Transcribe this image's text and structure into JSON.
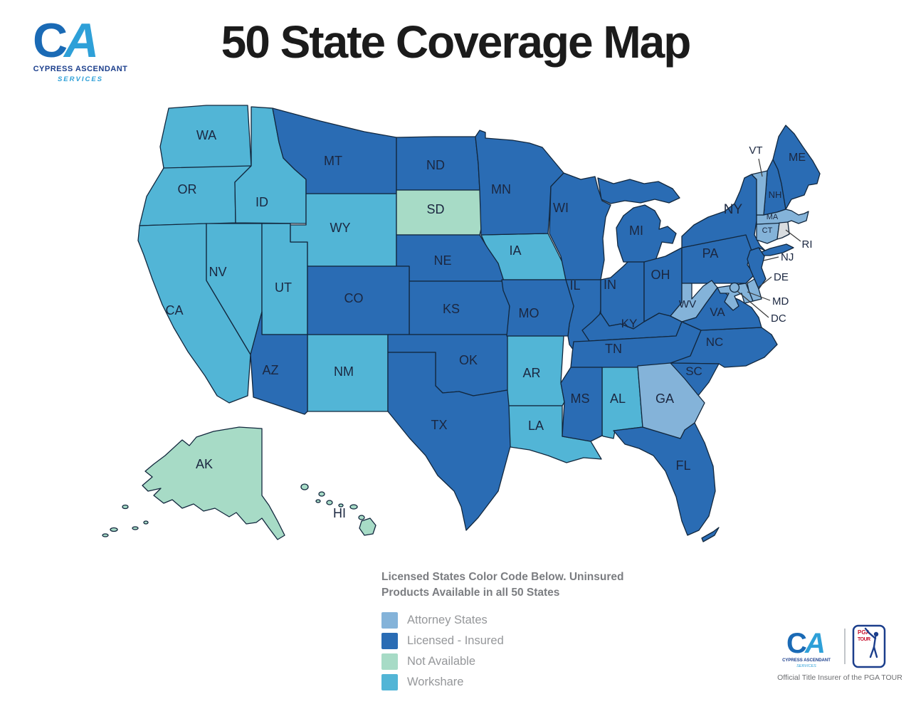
{
  "header": {
    "title": "50 State Coverage Map"
  },
  "brand": {
    "monogram_c": "C",
    "monogram_a": "A",
    "company_line1": "CYPRESS ASCENDANT",
    "company_line2": "SERVICES"
  },
  "colors": {
    "attorney": "#84b3d9",
    "licensed": "#2a6cb4",
    "not_available": "#a7dbc6",
    "workshare": "#52b5d6",
    "unclassified": "#d9dde0",
    "border": "#12273d",
    "label": "#1b2740"
  },
  "legend": {
    "heading_line1": "Licensed States Color Code Below. Uninsured",
    "heading_line2": "Products Available in all 50 States",
    "items": [
      {
        "label": "Attorney States",
        "category": "attorney"
      },
      {
        "label": "Licensed - Insured",
        "category": "licensed"
      },
      {
        "label": "Not Available",
        "category": "not_available"
      },
      {
        "label": "Workshare",
        "category": "workshare"
      }
    ]
  },
  "states": [
    {
      "abbr": "WA",
      "category": "workshare"
    },
    {
      "abbr": "OR",
      "category": "workshare"
    },
    {
      "abbr": "CA",
      "category": "workshare"
    },
    {
      "abbr": "NV",
      "category": "workshare"
    },
    {
      "abbr": "ID",
      "category": "workshare"
    },
    {
      "abbr": "UT",
      "category": "workshare"
    },
    {
      "abbr": "WY",
      "category": "workshare"
    },
    {
      "abbr": "NM",
      "category": "workshare"
    },
    {
      "abbr": "IA",
      "category": "workshare"
    },
    {
      "abbr": "AR",
      "category": "workshare"
    },
    {
      "abbr": "LA",
      "category": "workshare"
    },
    {
      "abbr": "AL",
      "category": "workshare"
    },
    {
      "abbr": "MT",
      "category": "licensed"
    },
    {
      "abbr": "ND",
      "category": "licensed"
    },
    {
      "abbr": "SD",
      "category": "not_available"
    },
    {
      "abbr": "NE",
      "category": "licensed"
    },
    {
      "abbr": "KS",
      "category": "licensed"
    },
    {
      "abbr": "CO",
      "category": "licensed"
    },
    {
      "abbr": "AZ",
      "category": "licensed"
    },
    {
      "abbr": "OK",
      "category": "licensed"
    },
    {
      "abbr": "TX",
      "category": "licensed"
    },
    {
      "abbr": "MN",
      "category": "licensed"
    },
    {
      "abbr": "WI",
      "category": "licensed"
    },
    {
      "abbr": "MI",
      "category": "licensed"
    },
    {
      "abbr": "IL",
      "category": "licensed"
    },
    {
      "abbr": "IN",
      "category": "licensed"
    },
    {
      "abbr": "OH",
      "category": "licensed"
    },
    {
      "abbr": "MO",
      "category": "licensed"
    },
    {
      "abbr": "KY",
      "category": "licensed"
    },
    {
      "abbr": "TN",
      "category": "licensed"
    },
    {
      "abbr": "MS",
      "category": "licensed"
    },
    {
      "abbr": "FL",
      "category": "licensed"
    },
    {
      "abbr": "NC",
      "category": "licensed"
    },
    {
      "abbr": "VA",
      "category": "licensed"
    },
    {
      "abbr": "SC",
      "category": "licensed"
    },
    {
      "abbr": "NY",
      "category": "licensed"
    },
    {
      "abbr": "PA",
      "category": "licensed"
    },
    {
      "abbr": "NJ",
      "category": "licensed"
    },
    {
      "abbr": "NH",
      "category": "licensed"
    },
    {
      "abbr": "ME",
      "category": "licensed"
    },
    {
      "abbr": "GA",
      "category": "attorney"
    },
    {
      "abbr": "WV",
      "category": "attorney"
    },
    {
      "abbr": "MD",
      "category": "attorney"
    },
    {
      "abbr": "DE",
      "category": "attorney"
    },
    {
      "abbr": "CT",
      "category": "attorney"
    },
    {
      "abbr": "MA",
      "category": "attorney"
    },
    {
      "abbr": "VT",
      "category": "attorney"
    },
    {
      "abbr": "DC",
      "category": "attorney"
    },
    {
      "abbr": "AK",
      "category": "not_available"
    },
    {
      "abbr": "HI",
      "category": "not_available"
    },
    {
      "abbr": "RI",
      "category": "unclassified"
    }
  ],
  "footer": {
    "caption": "Official Title Insurer of the PGA TOUR",
    "pga_line1": "PGA",
    "pga_line2": "TOUR"
  }
}
